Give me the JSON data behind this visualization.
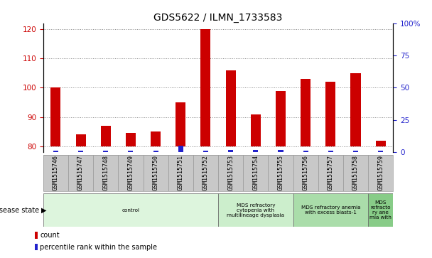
{
  "title": "GDS5622 / ILMN_1733583",
  "samples": [
    "GSM1515746",
    "GSM1515747",
    "GSM1515748",
    "GSM1515749",
    "GSM1515750",
    "GSM1515751",
    "GSM1515752",
    "GSM1515753",
    "GSM1515754",
    "GSM1515755",
    "GSM1515756",
    "GSM1515757",
    "GSM1515758",
    "GSM1515759"
  ],
  "counts": [
    100,
    84,
    87,
    84.5,
    85,
    95,
    120,
    106,
    91,
    99,
    103,
    102,
    105,
    82
  ],
  "percentile_ranks": [
    1,
    1,
    1,
    1,
    1,
    5,
    1,
    2,
    2,
    2,
    1,
    1,
    1,
    1
  ],
  "ylim_left": [
    78,
    122
  ],
  "ylim_right": [
    0,
    100
  ],
  "yticks_left": [
    80,
    90,
    100,
    110,
    120
  ],
  "yticks_right": [
    0,
    25,
    50,
    75,
    100
  ],
  "yticklabels_right": [
    "0",
    "25",
    "50",
    "75",
    "100%"
  ],
  "count_color": "#cc0000",
  "percentile_color": "#2222cc",
  "grid_color": "#888888",
  "tick_color_left": "#cc0000",
  "tick_color_right": "#2222cc",
  "disease_groups": [
    {
      "label": "control",
      "start": 0,
      "end": 6,
      "color": "#ddf5dd"
    },
    {
      "label": "MDS refractory\ncytopenia with\nmultilineage dysplasia",
      "start": 7,
      "end": 9,
      "color": "#cceecc"
    },
    {
      "label": "MDS refractory anemia\nwith excess blasts-1",
      "start": 10,
      "end": 12,
      "color": "#aaddaa"
    },
    {
      "label": "MDS\nrefracto\nry ane\nmia with",
      "start": 13,
      "end": 13,
      "color": "#88cc88"
    }
  ],
  "disease_state_label": "disease state",
  "legend_count_label": "count",
  "legend_percentile_label": "percentile rank within the sample",
  "xticklabel_fontsize": 6,
  "yticklabel_fontsize": 7.5,
  "title_fontsize": 10,
  "base_value": 80,
  "bar_width": 0.4,
  "perc_bar_width": 0.2,
  "tick_gray": "#c8c8c8",
  "tick_edge": "#999999"
}
